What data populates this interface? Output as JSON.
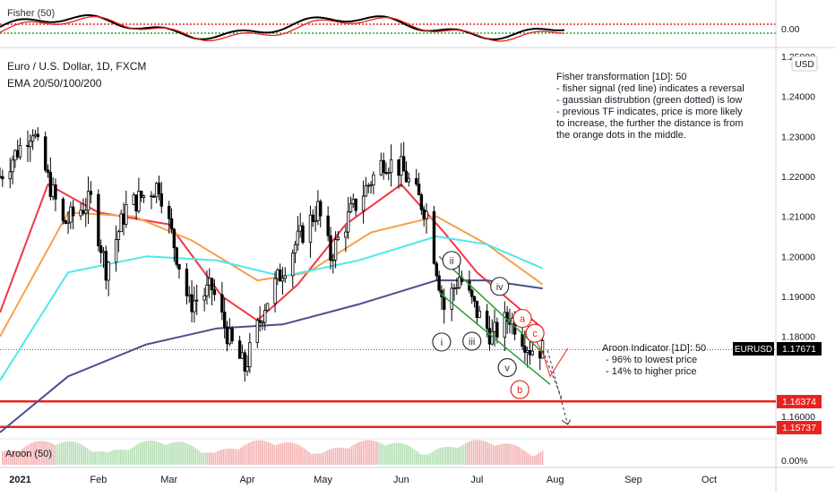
{
  "header": {
    "title": "Euro / U.S. Dollar, 1D, FXCM",
    "indicator": "EMA 20/50/100/200",
    "currency_badge": "USD",
    "fisher_top_label": "Fisher (50)",
    "fisher_zero": "0.00"
  },
  "annotations": {
    "fisher_note": [
      "Fisher transformation [1D]: 50",
      "- fisher signal (red line) indicates a reversal",
      "- gaussian distrubtion (green dotted) is low",
      "- previous TF indicates, price is more likely",
      "to increase, the further the distance is from",
      "the orange dots in the middle."
    ],
    "aroon_note": [
      "Aroon Indicator [1D]: 50",
      "- 96% to lowest price",
      "- 14% to higher price"
    ],
    "wave_labels": [
      "i",
      "ii",
      "iii",
      "iv",
      "v",
      "a",
      "b",
      "c"
    ]
  },
  "aroon_panel": {
    "label": "Aroon (50)",
    "zero": "0.00%"
  },
  "price_scale": {
    "ticks": [
      "1.25000",
      "1.24000",
      "1.23000",
      "1.22000",
      "1.21000",
      "1.20000",
      "1.19000",
      "1.18000",
      "1.16000"
    ]
  },
  "price_tags": [
    {
      "label": "EURUSD",
      "value": "1.17671",
      "color": "#000000"
    },
    {
      "value": "1.16374",
      "color": "#e8231f"
    },
    {
      "value": "1.15737",
      "color": "#e8231f"
    }
  ],
  "time_axis": {
    "ticks": [
      "2021",
      "Feb",
      "Mar",
      "Apr",
      "May",
      "Jun",
      "Jul",
      "Aug",
      "Sep",
      "Oct"
    ]
  },
  "colors": {
    "ema20": "#f23645",
    "ema50": "#f7a04b",
    "ema100": "#4fe8e8",
    "ema200": "#4a4f8c",
    "support": "#e8231f",
    "channel": "#2e9a3a",
    "aroon_up": "#f4b3b3",
    "aroon_down": "#b5dfb5"
  },
  "chart_data": {
    "type": "candlestick",
    "symbol": "EURUSD",
    "title": "Euro / U.S. Dollar, 1D, FXCM",
    "x": [
      "2021-01",
      "2021-02",
      "2021-03",
      "2021-04",
      "2021-05",
      "2021-06",
      "2021-07",
      "2021-08",
      "2021-09",
      "2021-10"
    ],
    "ylim": [
      1.15,
      1.25
    ],
    "last_price": 1.17671,
    "support_levels": [
      1.16374,
      1.15737
    ],
    "close_path": [
      [
        "2020-12-24",
        1.22
      ],
      [
        "2021-01-06",
        1.232
      ],
      [
        "2021-01-08",
        1.227
      ],
      [
        "2021-01-18",
        1.208
      ],
      [
        "2021-01-29",
        1.214
      ],
      [
        "2021-02-04",
        1.197
      ],
      [
        "2021-02-12",
        1.212
      ],
      [
        "2021-02-25",
        1.218
      ],
      [
        "2021-03-09",
        1.188
      ],
      [
        "2021-03-18",
        1.192
      ],
      [
        "2021-03-25",
        1.179
      ],
      [
        "2021-03-31",
        1.172
      ],
      [
        "2021-04-08",
        1.188
      ],
      [
        "2021-04-20",
        1.203
      ],
      [
        "2021-04-29",
        1.212
      ],
      [
        "2021-05-04",
        1.2
      ],
      [
        "2021-05-12",
        1.211
      ],
      [
        "2021-05-25",
        1.224
      ],
      [
        "2021-06-01",
        1.222
      ],
      [
        "2021-06-11",
        1.211
      ],
      [
        "2021-06-18",
        1.187
      ],
      [
        "2021-06-24",
        1.195
      ],
      [
        "2021-07-01",
        1.186
      ],
      [
        "2021-07-07",
        1.18
      ],
      [
        "2021-07-14",
        1.185
      ],
      [
        "2021-07-22",
        1.177
      ],
      [
        "2021-07-27",
        1.17671
      ]
    ],
    "series": [
      {
        "name": "EMA 20",
        "points": [
          [
            "2020-12-24",
            1.186
          ],
          [
            "2021-01-12",
            1.218
          ],
          [
            "2021-02-01",
            1.211
          ],
          [
            "2021-03-01",
            1.208
          ],
          [
            "2021-03-22",
            1.19
          ],
          [
            "2021-04-05",
            1.184
          ],
          [
            "2021-04-21",
            1.193
          ],
          [
            "2021-05-10",
            1.208
          ],
          [
            "2021-06-01",
            1.218
          ],
          [
            "2021-06-18",
            1.206
          ],
          [
            "2021-07-01",
            1.196
          ],
          [
            "2021-07-27",
            1.182
          ]
        ]
      },
      {
        "name": "EMA 50",
        "points": [
          [
            "2020-12-24",
            1.18
          ],
          [
            "2021-01-20",
            1.211
          ],
          [
            "2021-02-15",
            1.21
          ],
          [
            "2021-03-10",
            1.204
          ],
          [
            "2021-04-05",
            1.194
          ],
          [
            "2021-04-25",
            1.196
          ],
          [
            "2021-05-20",
            1.206
          ],
          [
            "2021-06-15",
            1.21
          ],
          [
            "2021-07-05",
            1.203
          ],
          [
            "2021-07-27",
            1.193
          ]
        ]
      },
      {
        "name": "EMA 100",
        "points": [
          [
            "2020-12-24",
            1.169
          ],
          [
            "2021-01-20",
            1.196
          ],
          [
            "2021-02-20",
            1.2
          ],
          [
            "2021-03-20",
            1.199
          ],
          [
            "2021-04-15",
            1.195
          ],
          [
            "2021-05-15",
            1.199
          ],
          [
            "2021-06-15",
            1.205
          ],
          [
            "2021-07-05",
            1.203
          ],
          [
            "2021-07-27",
            1.197
          ]
        ]
      },
      {
        "name": "EMA 200",
        "points": [
          [
            "2020-12-24",
            1.156
          ],
          [
            "2021-01-20",
            1.17
          ],
          [
            "2021-02-20",
            1.178
          ],
          [
            "2021-03-20",
            1.182
          ],
          [
            "2021-04-15",
            1.183
          ],
          [
            "2021-05-15",
            1.188
          ],
          [
            "2021-06-15",
            1.194
          ],
          [
            "2021-07-05",
            1.194
          ],
          [
            "2021-07-27",
            1.192
          ]
        ]
      }
    ],
    "channel": {
      "upper": [
        [
          "2021-06-16",
          1.2
        ],
        [
          "2021-07-27",
          1.176
        ]
      ],
      "lower": [
        [
          "2021-06-16",
          1.191
        ],
        [
          "2021-07-30",
          1.168
        ]
      ]
    },
    "aroon": {
      "up": 96,
      "down": 14
    },
    "grid": false
  }
}
